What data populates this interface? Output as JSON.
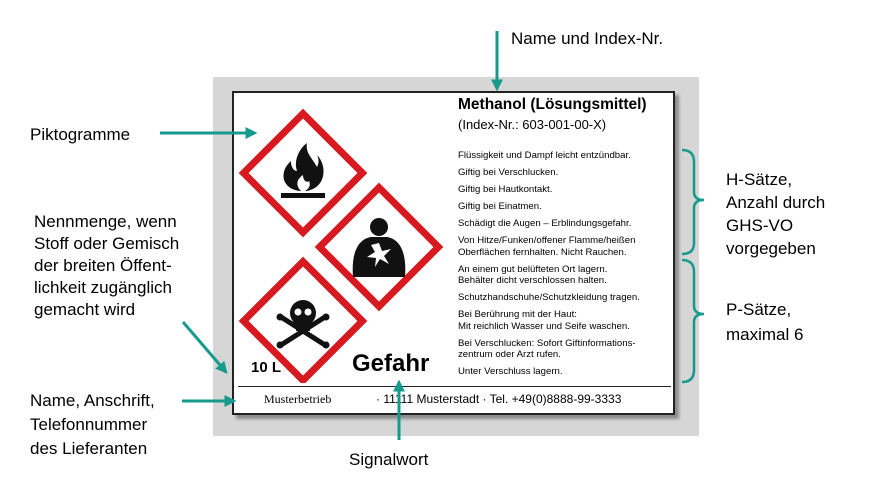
{
  "callouts": {
    "name_index": "Name und Index-Nr.",
    "pictograms": "Piktogramme",
    "quantity": [
      "Nennmenge, wenn",
      "Stoff oder Gemisch",
      "der breiten Öffent-",
      "lichkeit zugänglich",
      "gemacht wird"
    ],
    "supplier": [
      "Name, Anschrift,",
      "Telefonnummer",
      "des Lieferanten"
    ],
    "signal_word": "Signalwort",
    "h_phrases": [
      "H-Sätze,",
      "Anzahl durch",
      "GHS-VO",
      "vorgegeben"
    ],
    "p_phrases": [
      "P-Sätze,",
      "maximal 6"
    ]
  },
  "label": {
    "product_name": "Methanol (Lösungsmittel)",
    "index_number": "(Index-Nr.: 603-001-00-X)",
    "h_phrases": [
      "Flüssigkeit und Dampf leicht entzündbar.",
      "Giftig bei Verschlucken.",
      "Giftig bei Hautkontakt.",
      "Giftig bei Einatmen.",
      "Schädigt die Augen – Erblindungsgefahr."
    ],
    "p_phrases": [
      [
        "Von Hitze/Funken/offener Flamme/heißen",
        "Oberflächen fernhalten. Nicht Rauchen."
      ],
      [
        "An einem gut belüfteten Ort lagern.",
        "Behälter dicht verschlossen halten."
      ],
      [
        "Schutzhandschuhe/Schutzkleidung tragen."
      ],
      [
        "Bei Berührung mit der Haut:",
        "Mit reichlich Wasser und Seife waschen."
      ],
      [
        "Bei Verschlucken: Sofort Giftinformations-",
        "zentrum oder Arzt rufen."
      ],
      [
        "Unter Verschluss lagern."
      ]
    ],
    "quantity": "10 L",
    "signal_word": "Gefahr",
    "supplier_name": "Musterbetrieb",
    "supplier_address": "· 11111 Musterstadt · Tel. +49(0)8888-99-3333"
  },
  "pictograms": [
    "flame-icon",
    "health-hazard-icon",
    "skull-crossbones-icon"
  ],
  "colors": {
    "arrow": "#159a8c",
    "pictogram_border": "#d71920",
    "label_bg": "#ffffff",
    "frame_bg": "#d6d6d6"
  }
}
